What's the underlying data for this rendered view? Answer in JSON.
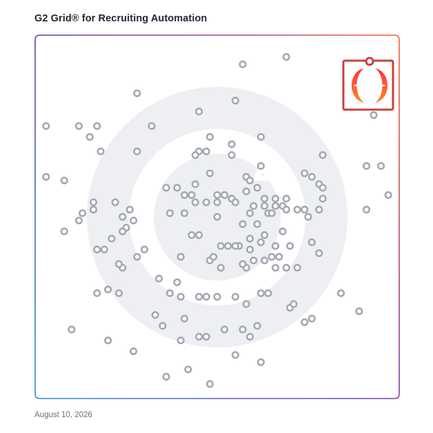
{
  "title": "G2 Grid® for Recruiting Automation",
  "date": "August 10, 2026",
  "colors": {
    "frame_top_left": "#5b3fb5",
    "frame_top_right": "#ff5c35",
    "frame_bottom_left": "#2a8fd6",
    "frame_bottom_right": "#7a3fb0",
    "marker_stroke": "#a4a8b2",
    "watermark": "#eeeff2",
    "highlight": "#ff4f2a",
    "highlight_frame": "#c8413b"
  },
  "chart_data": {
    "type": "scatter",
    "title": "G2 Grid® for Recruiting Automation",
    "xlabel": "",
    "ylabel": "",
    "xlim": [
      0,
      100
    ],
    "ylim": [
      0,
      100
    ],
    "grid": false,
    "quadrant_dividers": {
      "x": 50,
      "y": 50
    },
    "highlighted_product": {
      "x": 92,
      "y": 89,
      "icon": "highlighted-product-logo"
    },
    "points": [
      [
        69,
        94
      ],
      [
        57,
        92
      ],
      [
        28,
        84
      ],
      [
        55,
        82
      ],
      [
        45,
        79
      ],
      [
        93,
        78
      ],
      [
        3,
        75
      ],
      [
        12,
        75
      ],
      [
        17,
        75
      ],
      [
        32,
        75
      ],
      [
        15,
        72
      ],
      [
        48,
        72
      ],
      [
        62,
        72
      ],
      [
        54,
        70
      ],
      [
        45,
        68
      ],
      [
        47,
        68
      ],
      [
        18,
        68
      ],
      [
        28,
        68
      ],
      [
        44,
        67
      ],
      [
        54,
        67
      ],
      [
        79,
        67
      ],
      [
        62,
        64
      ],
      [
        91,
        64
      ],
      [
        95,
        64
      ],
      [
        48,
        62
      ],
      [
        74,
        62
      ],
      [
        3,
        61
      ],
      [
        58,
        61
      ],
      [
        76,
        61
      ],
      [
        8,
        60
      ],
      [
        59,
        60
      ],
      [
        44,
        59
      ],
      [
        78,
        59
      ],
      [
        79,
        58
      ],
      [
        36,
        58
      ],
      [
        39,
        58
      ],
      [
        58,
        57
      ],
      [
        61,
        58
      ],
      [
        97,
        56
      ],
      [
        41,
        56
      ],
      [
        43,
        56
      ],
      [
        50,
        56
      ],
      [
        52,
        56
      ],
      [
        54,
        55
      ],
      [
        63,
        55
      ],
      [
        66,
        55
      ],
      [
        69,
        55
      ],
      [
        79,
        55
      ],
      [
        55,
        54
      ],
      [
        16,
        54
      ],
      [
        22,
        54
      ],
      [
        47,
        54
      ],
      [
        44,
        54
      ],
      [
        50,
        54
      ],
      [
        60,
        53
      ],
      [
        63,
        53
      ],
      [
        66,
        53
      ],
      [
        68,
        53
      ],
      [
        91,
        52
      ],
      [
        41,
        51
      ],
      [
        64,
        51
      ],
      [
        65,
        51
      ],
      [
        69,
        52
      ],
      [
        74,
        52
      ],
      [
        78,
        52
      ],
      [
        72,
        52
      ],
      [
        16,
        52
      ],
      [
        26,
        52
      ],
      [
        13,
        51
      ],
      [
        37,
        51
      ],
      [
        59,
        51
      ],
      [
        75,
        50
      ],
      [
        24,
        50
      ],
      [
        50,
        50
      ],
      [
        12,
        49
      ],
      [
        27,
        49
      ],
      [
        57,
        48
      ],
      [
        61,
        48
      ],
      [
        25,
        47
      ],
      [
        8,
        46
      ],
      [
        24,
        46
      ],
      [
        43,
        45
      ],
      [
        45,
        45
      ],
      [
        63,
        45
      ],
      [
        68,
        46
      ],
      [
        21,
        44
      ],
      [
        59,
        44
      ],
      [
        62,
        43
      ],
      [
        56,
        42
      ],
      [
        76,
        43
      ],
      [
        51,
        42
      ],
      [
        53,
        42
      ],
      [
        55,
        42
      ],
      [
        59,
        41
      ],
      [
        66,
        42
      ],
      [
        70,
        42
      ],
      [
        30,
        41
      ],
      [
        17,
        41
      ],
      [
        19,
        41
      ],
      [
        78,
        40
      ],
      [
        28,
        39
      ],
      [
        40,
        39
      ],
      [
        48,
        38
      ],
      [
        49,
        39
      ],
      [
        65,
        39
      ],
      [
        67,
        39
      ],
      [
        60,
        38
      ],
      [
        51,
        36
      ],
      [
        58,
        36
      ],
      [
        24,
        36
      ],
      [
        23,
        37
      ],
      [
        57,
        37
      ],
      [
        63,
        38
      ],
      [
        66,
        36
      ],
      [
        69,
        36
      ],
      [
        72,
        36
      ],
      [
        34,
        33
      ],
      [
        39,
        32
      ],
      [
        20,
        30
      ],
      [
        37,
        29
      ],
      [
        47,
        28
      ],
      [
        50,
        28
      ],
      [
        62,
        29
      ],
      [
        64,
        29
      ],
      [
        84,
        29
      ],
      [
        17,
        29
      ],
      [
        23,
        29
      ],
      [
        45,
        28
      ],
      [
        40,
        28
      ],
      [
        55,
        28
      ],
      [
        58,
        26
      ],
      [
        70,
        25
      ],
      [
        71,
        26
      ],
      [
        89,
        24
      ],
      [
        76,
        22
      ],
      [
        74,
        21
      ],
      [
        33,
        23
      ],
      [
        41,
        22
      ],
      [
        61,
        20
      ],
      [
        10,
        19
      ],
      [
        35,
        20
      ],
      [
        52,
        19
      ],
      [
        57,
        19
      ],
      [
        47,
        17
      ],
      [
        59,
        17
      ],
      [
        45,
        17
      ],
      [
        20,
        16
      ],
      [
        40,
        16
      ],
      [
        27,
        13
      ],
      [
        55,
        12
      ],
      [
        62,
        10
      ],
      [
        42,
        8
      ],
      [
        36,
        6
      ],
      [
        48,
        4
      ]
    ]
  }
}
